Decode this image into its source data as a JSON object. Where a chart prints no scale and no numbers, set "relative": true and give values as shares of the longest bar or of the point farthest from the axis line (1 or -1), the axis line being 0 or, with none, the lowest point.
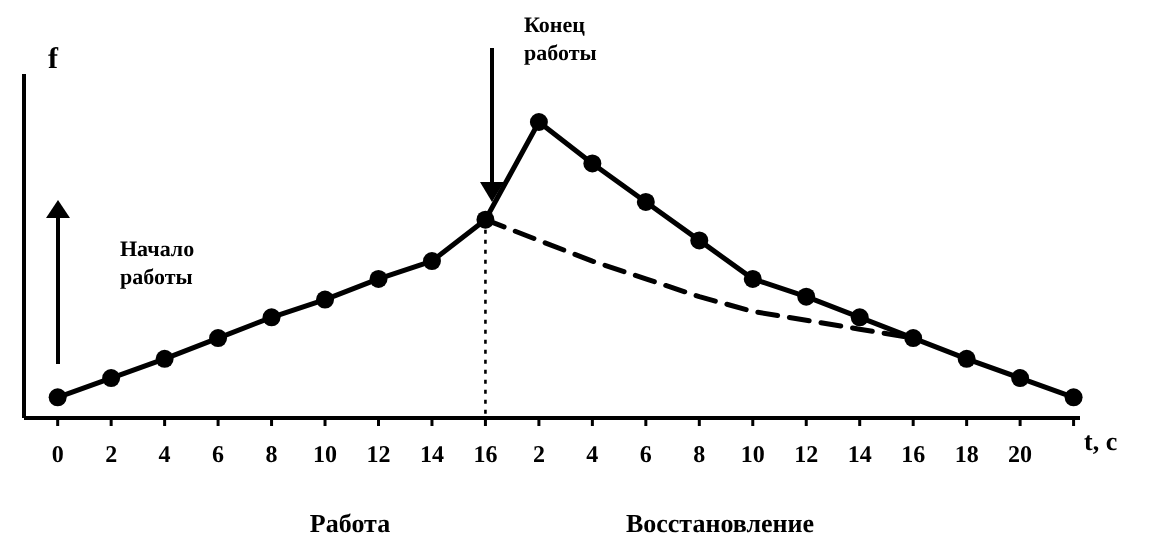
{
  "chart_data": {
    "type": "line",
    "relative": true,
    "ylabel": "f",
    "xlabel": "t, c",
    "categories": [
      "0",
      "2",
      "4",
      "6",
      "8",
      "10",
      "12",
      "14",
      "16",
      "2",
      "4",
      "6",
      "8",
      "10",
      "12",
      "14",
      "16",
      "18",
      "20",
      null
    ],
    "series": [
      {
        "color": "#000000",
        "marker": "circle",
        "line_style": "solid",
        "values": [
          0.07,
          0.135,
          0.2,
          0.27,
          0.34,
          0.4,
          0.47,
          0.53,
          0.67,
          1,
          0.86,
          0.73,
          0.6,
          0.47,
          0.41,
          0.34,
          0.27,
          0.2,
          0.135,
          0.07
        ]
      },
      {
        "color": "#000000",
        "marker": "none",
        "line_style": "dashed",
        "values": [
          null,
          null,
          null,
          null,
          null,
          null,
          null,
          null,
          0.67,
          0.6,
          0.53,
          0.47,
          0.41,
          0.36,
          0.33,
          0.3,
          0.27,
          null,
          null,
          null
        ]
      }
    ],
    "ref_lines": [
      {
        "axis": "x",
        "value": "16",
        "line_style": "dotted",
        "color": "#000000"
      }
    ],
    "annotations": [
      "Начало работы",
      "Конец работы",
      "Работа",
      "Восстановление"
    ],
    "grid": false
  }
}
